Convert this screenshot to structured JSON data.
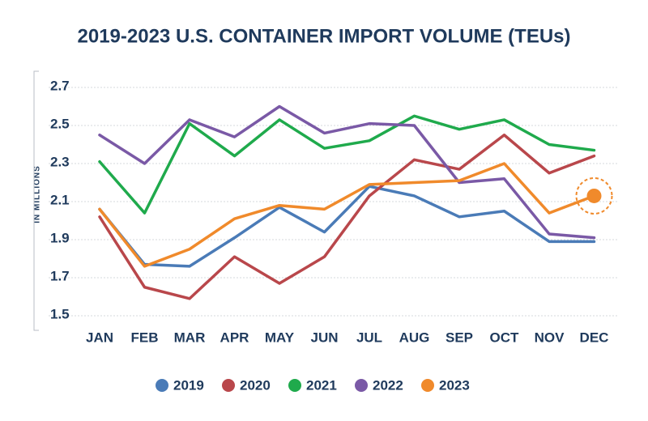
{
  "chart_data": {
    "type": "line",
    "title": "2019-2023 U.S. CONTAINER IMPORT VOLUME (TEUs)",
    "y_label": "IN MILLIONS",
    "categories": [
      "JAN",
      "FEB",
      "MAR",
      "APR",
      "MAY",
      "JUN",
      "JUL",
      "AUG",
      "SEP",
      "OCT",
      "NOV",
      "DEC"
    ],
    "series": [
      {
        "name": "2019",
        "color": "#4a7bb7",
        "values": [
          2.06,
          1.77,
          1.76,
          1.91,
          2.07,
          1.94,
          2.18,
          2.13,
          2.02,
          2.05,
          1.89,
          1.89
        ]
      },
      {
        "name": "2020",
        "color": "#b9474b",
        "values": [
          2.02,
          1.65,
          1.59,
          1.81,
          1.67,
          1.81,
          2.13,
          2.32,
          2.27,
          2.45,
          2.25,
          2.34
        ]
      },
      {
        "name": "2021",
        "color": "#1faa4c",
        "values": [
          2.31,
          2.04,
          2.51,
          2.34,
          2.53,
          2.38,
          2.42,
          2.55,
          2.48,
          2.53,
          2.4,
          2.37
        ]
      },
      {
        "name": "2022",
        "color": "#7a59a6",
        "values": [
          2.45,
          2.3,
          2.53,
          2.44,
          2.6,
          2.46,
          2.51,
          2.5,
          2.2,
          2.22,
          1.93,
          1.91
        ]
      },
      {
        "name": "2023",
        "color": "#f08a2b",
        "values": [
          2.06,
          1.76,
          1.85,
          2.01,
          2.08,
          2.06,
          2.19,
          2.2,
          2.21,
          2.3,
          2.04,
          2.13
        ]
      }
    ],
    "ylim": [
      1.5,
      2.7
    ],
    "yticks": [
      1.5,
      1.7,
      1.9,
      2.1,
      2.3,
      2.5,
      2.7
    ],
    "grid": true,
    "legend": "bottom"
  }
}
